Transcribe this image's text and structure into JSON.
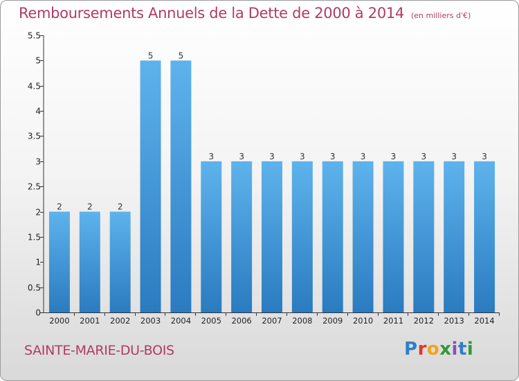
{
  "header": {
    "title": "Remboursements Annuels de la Dette de 2000 à 2014",
    "unit": "(en milliers d'€)"
  },
  "footer": {
    "commune": "SAINTE-MARIE-DU-BOIS",
    "logo_letters": [
      "P",
      "r",
      "o",
      "x",
      "i",
      "t",
      "i"
    ]
  },
  "colors": {
    "title": "#b03a66",
    "bar_top": "#5eb3ec",
    "bar_bottom": "#2a7bc0"
  },
  "chart_data": {
    "type": "bar",
    "title": "Remboursements Annuels de la Dette de 2000 à 2014",
    "xlabel": "",
    "ylabel": "",
    "categories": [
      "2000",
      "2001",
      "2002",
      "2003",
      "2004",
      "2005",
      "2006",
      "2007",
      "2008",
      "2009",
      "2010",
      "2011",
      "2012",
      "2013",
      "2014"
    ],
    "values": [
      2,
      2,
      2,
      5,
      5,
      3,
      3,
      3,
      3,
      3,
      3,
      3,
      3,
      3,
      3
    ],
    "data_labels": [
      "2",
      "2",
      "2",
      "5",
      "5",
      "3",
      "3",
      "3",
      "3",
      "3",
      "3",
      "3",
      "3",
      "3",
      "3"
    ],
    "ylim": [
      0,
      5.5
    ],
    "yticks": [
      0,
      0.5,
      1,
      1.5,
      2,
      2.5,
      3,
      3.5,
      4,
      4.5,
      5,
      5.5
    ],
    "ytick_labels": [
      "0",
      "0.5",
      "1",
      "1.5",
      "2",
      "2.5",
      "3",
      "3.5",
      "4",
      "4.5",
      "5",
      "5.5"
    ],
    "grid": false,
    "legend": "none"
  }
}
